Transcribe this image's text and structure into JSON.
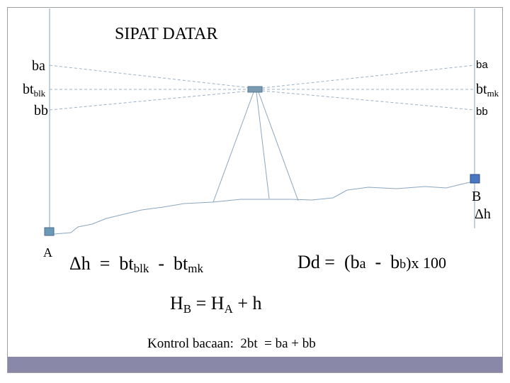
{
  "title": "SIPAT DATAR",
  "left_staff": {
    "ba": "ba",
    "bt": "bt",
    "bt_sub": "blk",
    "bb": "bb"
  },
  "right_staff": {
    "ba": "ba",
    "bt": "bt",
    "bt_sub": "mk",
    "bb": "bb"
  },
  "points": {
    "a": "A",
    "b": "B",
    "b_dh": "Δh"
  },
  "formula_dh": {
    "lhs": "Δh  =  bt",
    "sub1": "blk",
    "mid": "  -  bt",
    "sub2": "mk"
  },
  "formula_dd": {
    "lhs": "Dd =  (b",
    "sub1": "a",
    "mid": "  -  b",
    "sub2": "b",
    "rhs": ")x 100"
  },
  "formula_hb": {
    "h": "H",
    "sub1": "B",
    "mid": " = H",
    "sub2": "A",
    "rhs": " + h"
  },
  "kontrol": "Kontrol bacaan:  2bt  = ba + bb"
}
